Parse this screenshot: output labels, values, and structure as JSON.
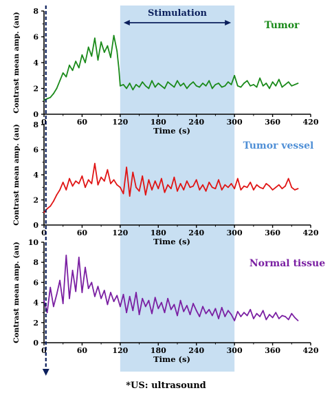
{
  "footnote": "*US: ultrasound",
  "stimulation": {
    "label": "Stimulation",
    "start": 120,
    "end": 300,
    "fill": "#c8dff2"
  },
  "marker": {
    "x": 3,
    "color": "#0b1f5c"
  },
  "chart_data": [
    {
      "type": "line",
      "label": "Tumor",
      "color": "#1a8a1a",
      "xlabel": "Time (s)",
      "ylabel": "Contrast mean amp. (au)",
      "xlim": [
        0,
        420
      ],
      "ylim": [
        0,
        8
      ],
      "xticks": [
        0,
        60,
        120,
        180,
        240,
        300,
        360,
        420
      ],
      "yticks": [
        0,
        2,
        4,
        6,
        8
      ],
      "x": [
        0,
        5,
        10,
        15,
        20,
        25,
        30,
        35,
        40,
        45,
        50,
        55,
        60,
        65,
        70,
        75,
        80,
        85,
        90,
        95,
        100,
        105,
        110,
        115,
        118,
        120,
        125,
        130,
        135,
        140,
        145,
        150,
        155,
        160,
        165,
        170,
        175,
        180,
        185,
        190,
        195,
        200,
        205,
        210,
        215,
        220,
        225,
        230,
        235,
        240,
        245,
        250,
        255,
        260,
        265,
        270,
        275,
        280,
        285,
        290,
        295,
        300,
        305,
        310,
        315,
        320,
        325,
        330,
        335,
        340,
        345,
        350,
        355,
        360,
        365,
        370,
        375,
        380,
        385,
        390,
        395,
        400
      ],
      "y": [
        1.1,
        1.2,
        1.3,
        1.6,
        2.0,
        2.6,
        3.2,
        2.9,
        3.8,
        3.4,
        4.1,
        3.6,
        4.6,
        4.0,
        5.2,
        4.5,
        5.9,
        4.2,
        5.6,
        4.8,
        5.3,
        4.4,
        6.1,
        4.9,
        3.5,
        2.2,
        2.3,
        2.0,
        2.4,
        1.9,
        2.3,
        2.1,
        2.5,
        2.2,
        2.0,
        2.6,
        2.1,
        2.4,
        2.2,
        2.0,
        2.5,
        2.3,
        2.1,
        2.6,
        2.2,
        2.4,
        2.0,
        2.3,
        2.5,
        2.2,
        2.1,
        2.4,
        2.2,
        2.6,
        2.0,
        2.3,
        2.4,
        2.1,
        2.2,
        2.5,
        2.3,
        3.0,
        2.2,
        2.1,
        2.4,
        2.6,
        2.2,
        2.3,
        2.1,
        2.8,
        2.2,
        2.4,
        2.0,
        2.5,
        2.2,
        2.7,
        2.1,
        2.3,
        2.5,
        2.2,
        2.3,
        2.4
      ]
    },
    {
      "type": "line",
      "label": "Tumor vessel",
      "color": "#e01414",
      "xlabel": "Time (s)",
      "ylabel": "Contrast mean amp. (au)",
      "xlim": [
        0,
        420
      ],
      "ylim": [
        0,
        8
      ],
      "xticks": [
        0,
        60,
        120,
        180,
        240,
        300,
        360,
        420
      ],
      "yticks": [
        0,
        2,
        4,
        6,
        8
      ],
      "x": [
        0,
        5,
        10,
        15,
        20,
        25,
        30,
        35,
        40,
        45,
        50,
        55,
        60,
        65,
        70,
        75,
        80,
        85,
        90,
        95,
        100,
        105,
        110,
        115,
        120,
        125,
        130,
        135,
        140,
        145,
        150,
        155,
        160,
        165,
        170,
        175,
        180,
        185,
        190,
        195,
        200,
        205,
        210,
        215,
        220,
        225,
        230,
        235,
        240,
        245,
        250,
        255,
        260,
        265,
        270,
        275,
        280,
        285,
        290,
        295,
        300,
        305,
        310,
        315,
        320,
        325,
        330,
        335,
        340,
        345,
        350,
        355,
        360,
        365,
        370,
        375,
        380,
        385,
        390,
        395,
        400
      ],
      "y": [
        1.0,
        1.3,
        1.5,
        1.9,
        2.4,
        2.8,
        3.4,
        2.8,
        3.7,
        3.1,
        3.5,
        3.3,
        3.9,
        3.0,
        3.6,
        3.3,
        4.9,
        3.2,
        3.8,
        3.5,
        4.4,
        3.3,
        3.6,
        3.2,
        3.0,
        2.5,
        4.6,
        2.3,
        4.2,
        3.0,
        2.7,
        3.9,
        2.4,
        3.6,
        2.8,
        3.5,
        2.9,
        3.7,
        2.6,
        3.2,
        2.9,
        3.8,
        2.7,
        3.3,
        2.8,
        3.5,
        3.0,
        3.1,
        3.6,
        2.8,
        3.2,
        2.7,
        3.4,
        3.0,
        2.9,
        3.6,
        2.8,
        3.2,
        3.0,
        3.3,
        2.9,
        3.7,
        2.8,
        3.1,
        3.0,
        3.4,
        2.8,
        3.2,
        3.0,
        2.9,
        3.3,
        3.1,
        2.8,
        3.0,
        3.2,
        2.9,
        3.1,
        3.7,
        3.0,
        2.8,
        2.9
      ]
    },
    {
      "type": "line",
      "label": "Normal tissue",
      "color": "#7a1fa2",
      "xlabel": "Time (s)",
      "ylabel": "Contrast mean amp. (au)",
      "xlim": [
        0,
        420
      ],
      "ylim": [
        0,
        10
      ],
      "xticks": [
        0,
        60,
        120,
        180,
        240,
        300,
        360,
        420
      ],
      "yticks": [
        0,
        2,
        4,
        6,
        8,
        10
      ],
      "x": [
        0,
        5,
        10,
        15,
        20,
        25,
        30,
        35,
        40,
        45,
        50,
        55,
        60,
        65,
        70,
        75,
        80,
        85,
        90,
        95,
        100,
        105,
        110,
        115,
        120,
        125,
        130,
        135,
        140,
        145,
        150,
        155,
        160,
        165,
        170,
        175,
        180,
        185,
        190,
        195,
        200,
        205,
        210,
        215,
        220,
        225,
        230,
        235,
        240,
        245,
        250,
        255,
        260,
        265,
        270,
        275,
        280,
        285,
        290,
        295,
        300,
        305,
        310,
        315,
        320,
        325,
        330,
        335,
        340,
        345,
        350,
        355,
        360,
        365,
        370,
        375,
        380,
        385,
        390,
        395,
        400
      ],
      "y": [
        4.2,
        3.0,
        5.5,
        3.6,
        4.8,
        6.2,
        3.9,
        8.7,
        4.4,
        7.2,
        5.1,
        8.5,
        5.0,
        7.5,
        5.4,
        6.0,
        4.6,
        5.6,
        4.4,
        5.2,
        3.8,
        5.0,
        4.1,
        4.7,
        3.6,
        4.8,
        3.0,
        4.6,
        3.2,
        5.0,
        2.8,
        4.4,
        3.6,
        4.2,
        2.9,
        4.5,
        3.4,
        4.0,
        3.0,
        4.4,
        3.3,
        3.8,
        2.7,
        4.2,
        3.1,
        3.7,
        2.8,
        3.9,
        3.2,
        2.6,
        3.6,
        2.9,
        3.3,
        2.7,
        3.4,
        2.4,
        3.5,
        2.6,
        3.2,
        2.8,
        2.2,
        3.1,
        2.6,
        3.0,
        2.7,
        3.3,
        2.4,
        2.9,
        2.6,
        3.2,
        2.3,
        2.8,
        2.5,
        3.0,
        2.4,
        2.7,
        2.6,
        2.3,
        2.9,
        2.5,
        2.2
      ]
    }
  ]
}
